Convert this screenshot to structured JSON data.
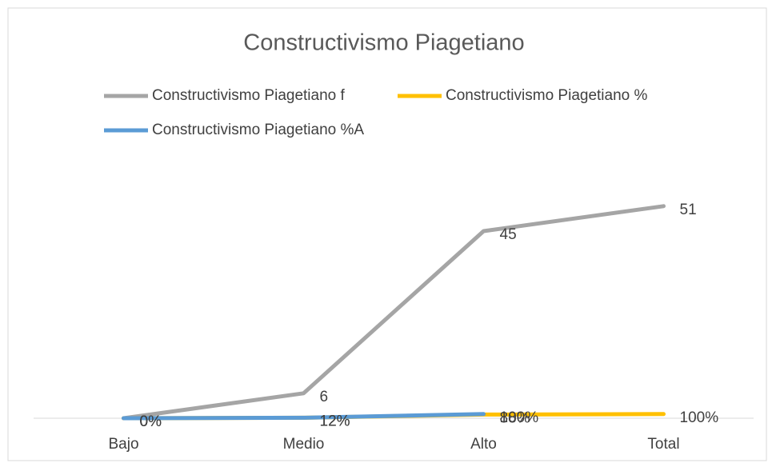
{
  "chart_data": {
    "type": "line",
    "title": "Constructivismo Piagetiano",
    "categories": [
      "Bajo",
      "Medio",
      "Alto",
      "Total"
    ],
    "series": [
      {
        "name": "Constructivismo Piagetiano f",
        "color": "#a5a5a5",
        "values": [
          0,
          6,
          45,
          51
        ]
      },
      {
        "name": "Constructivismo Piagetiano %",
        "color": "#ffc000",
        "values": [
          0,
          0.12,
          0.88,
          1
        ],
        "value_labels": [
          "0%",
          "12%",
          "88%",
          "100%"
        ]
      },
      {
        "name": "Constructivismo Piagetiano %A",
        "color": "#5b9bd5",
        "values": [
          0,
          0.12,
          1,
          null
        ],
        "value_labels": [
          "0%",
          "12%",
          "100%",
          null
        ]
      }
    ],
    "ylim": [
      0,
      60
    ]
  }
}
